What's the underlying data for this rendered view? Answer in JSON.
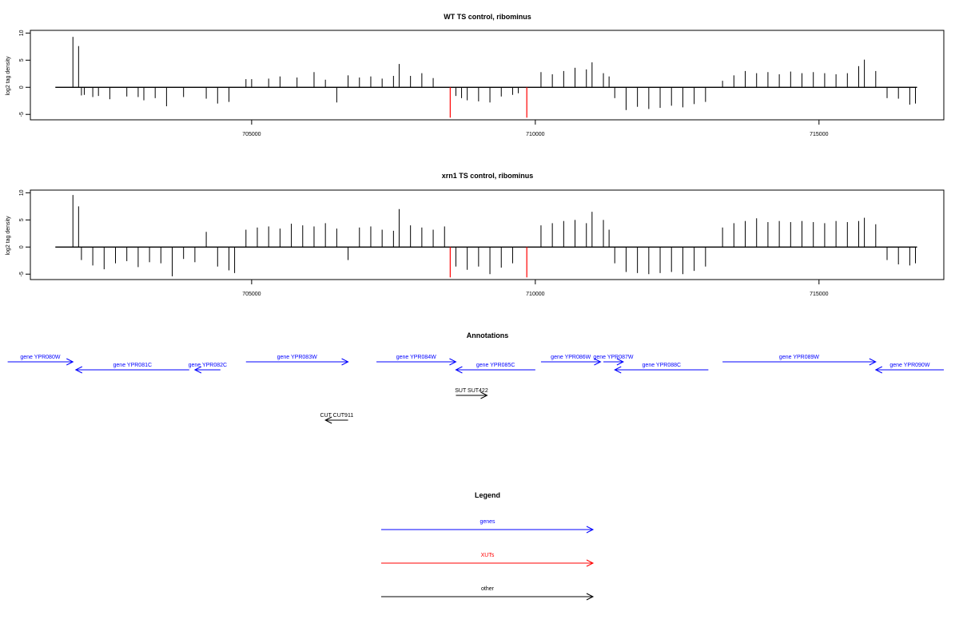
{
  "chart_data": [
    {
      "type": "bar",
      "title": "WT TS control, ribominus",
      "ylabel": "log2 tag density",
      "xlabel": "",
      "xlim": [
        701100,
        717200
      ],
      "ylim": [
        -6,
        10.5
      ],
      "x_ticks": [
        705000,
        710000,
        715000
      ],
      "y_ticks": [
        10,
        5,
        0,
        -5
      ],
      "grid": false,
      "series": [
        {
          "kind": "bars",
          "color": "#000000",
          "points": [
            [
              701850,
              9.3
            ],
            [
              701950,
              7.6
            ],
            [
              702000,
              -1.5
            ],
            [
              702050,
              -1.4
            ],
            [
              702200,
              -1.8
            ],
            [
              702300,
              -1.6
            ],
            [
              702500,
              -2.2
            ],
            [
              702800,
              -1.7
            ],
            [
              703000,
              -1.8
            ],
            [
              703100,
              -2.4
            ],
            [
              703300,
              -2.0
            ],
            [
              703500,
              -3.5
            ],
            [
              703800,
              -1.8
            ],
            [
              704200,
              -2.1
            ],
            [
              704400,
              -3.0
            ],
            [
              704600,
              -2.7
            ],
            [
              704900,
              1.5
            ],
            [
              705000,
              1.5
            ],
            [
              705300,
              1.6
            ],
            [
              705500,
              2.0
            ],
            [
              705800,
              1.8
            ],
            [
              706100,
              2.8
            ],
            [
              706300,
              1.4
            ],
            [
              706500,
              -2.8
            ],
            [
              706700,
              2.2
            ],
            [
              706900,
              1.8
            ],
            [
              707100,
              2.0
            ],
            [
              707300,
              1.6
            ],
            [
              707500,
              2.1
            ],
            [
              707600,
              4.3
            ],
            [
              707800,
              2.1
            ],
            [
              708000,
              2.6
            ],
            [
              708200,
              1.7
            ],
            [
              708600,
              -1.6
            ],
            [
              708700,
              -2.0
            ],
            [
              708800,
              -2.4
            ],
            [
              709000,
              -2.6
            ],
            [
              709200,
              -2.8
            ],
            [
              709400,
              -1.7
            ],
            [
              709600,
              -1.4
            ],
            [
              709700,
              -1.1
            ],
            [
              710100,
              2.8
            ],
            [
              710300,
              2.4
            ],
            [
              710500,
              3.0
            ],
            [
              710700,
              3.6
            ],
            [
              710900,
              3.3
            ],
            [
              711000,
              4.6
            ],
            [
              711200,
              2.6
            ],
            [
              711300,
              2.0
            ],
            [
              711400,
              -2.0
            ],
            [
              711600,
              -4.2
            ],
            [
              711800,
              -3.6
            ],
            [
              712000,
              -4.0
            ],
            [
              712200,
              -3.8
            ],
            [
              712400,
              -3.4
            ],
            [
              712600,
              -3.7
            ],
            [
              712800,
              -3.1
            ],
            [
              713000,
              -2.7
            ],
            [
              713300,
              1.2
            ],
            [
              713500,
              2.2
            ],
            [
              713700,
              3.0
            ],
            [
              713900,
              2.6
            ],
            [
              714100,
              2.8
            ],
            [
              714300,
              2.4
            ],
            [
              714500,
              2.9
            ],
            [
              714700,
              2.6
            ],
            [
              714900,
              2.8
            ],
            [
              715100,
              2.6
            ],
            [
              715300,
              2.4
            ],
            [
              715500,
              2.6
            ],
            [
              715700,
              3.9
            ],
            [
              715800,
              5.1
            ],
            [
              716000,
              3.0
            ],
            [
              716200,
              -2.0
            ],
            [
              716400,
              -2.1
            ],
            [
              716600,
              -3.2
            ],
            [
              716700,
              -3.0
            ]
          ]
        },
        {
          "kind": "bars",
          "color": "#ff0000",
          "points": [
            [
              708500,
              -5.6
            ],
            [
              709850,
              -5.6
            ]
          ]
        }
      ]
    },
    {
      "type": "bar",
      "title": "xrn1 TS control, ribominus",
      "ylabel": "log2 tag density",
      "xlabel": "",
      "xlim": [
        701100,
        717200
      ],
      "ylim": [
        -6,
        10.5
      ],
      "x_ticks": [
        705000,
        710000,
        715000
      ],
      "y_ticks": [
        10,
        5,
        0,
        -5
      ],
      "grid": false,
      "series": [
        {
          "kind": "bars",
          "color": "#000000",
          "points": [
            [
              701850,
              9.6
            ],
            [
              701950,
              7.5
            ],
            [
              702000,
              -2.4
            ],
            [
              702200,
              -3.4
            ],
            [
              702400,
              -4.1
            ],
            [
              702600,
              -3.0
            ],
            [
              702800,
              -2.6
            ],
            [
              703000,
              -3.7
            ],
            [
              703200,
              -2.8
            ],
            [
              703400,
              -3.0
            ],
            [
              703600,
              -5.4
            ],
            [
              703800,
              -2.2
            ],
            [
              704000,
              -2.8
            ],
            [
              704200,
              2.8
            ],
            [
              704400,
              -3.6
            ],
            [
              704600,
              -4.3
            ],
            [
              704700,
              -4.8
            ],
            [
              704900,
              3.2
            ],
            [
              705100,
              3.6
            ],
            [
              705300,
              3.8
            ],
            [
              705500,
              3.4
            ],
            [
              705700,
              4.3
            ],
            [
              705900,
              4.0
            ],
            [
              706100,
              3.8
            ],
            [
              706300,
              4.4
            ],
            [
              706500,
              3.4
            ],
            [
              706700,
              -2.4
            ],
            [
              706900,
              3.6
            ],
            [
              707100,
              3.8
            ],
            [
              707300,
              3.2
            ],
            [
              707500,
              3.0
            ],
            [
              707600,
              7.0
            ],
            [
              707800,
              4.0
            ],
            [
              708000,
              3.6
            ],
            [
              708200,
              3.2
            ],
            [
              708400,
              3.8
            ],
            [
              708600,
              -3.6
            ],
            [
              708800,
              -4.2
            ],
            [
              709000,
              -3.6
            ],
            [
              709200,
              -5.0
            ],
            [
              709400,
              -3.8
            ],
            [
              709600,
              -3.0
            ],
            [
              710100,
              4.0
            ],
            [
              710300,
              4.4
            ],
            [
              710500,
              4.8
            ],
            [
              710700,
              5.0
            ],
            [
              710900,
              4.4
            ],
            [
              711000,
              6.5
            ],
            [
              711200,
              5.0
            ],
            [
              711300,
              3.2
            ],
            [
              711400,
              -3.0
            ],
            [
              711600,
              -4.6
            ],
            [
              711800,
              -4.8
            ],
            [
              712000,
              -5.0
            ],
            [
              712200,
              -4.8
            ],
            [
              712400,
              -4.6
            ],
            [
              712600,
              -5.0
            ],
            [
              712800,
              -4.4
            ],
            [
              713000,
              -3.6
            ],
            [
              713300,
              3.6
            ],
            [
              713500,
              4.4
            ],
            [
              713700,
              4.8
            ],
            [
              713900,
              5.3
            ],
            [
              714100,
              4.6
            ],
            [
              714300,
              4.8
            ],
            [
              714500,
              4.6
            ],
            [
              714700,
              4.8
            ],
            [
              714900,
              4.6
            ],
            [
              715100,
              4.4
            ],
            [
              715300,
              4.8
            ],
            [
              715500,
              4.6
            ],
            [
              715700,
              4.8
            ],
            [
              715800,
              5.4
            ],
            [
              716000,
              4.2
            ],
            [
              716200,
              -2.4
            ],
            [
              716400,
              -3.2
            ],
            [
              716600,
              -3.4
            ],
            [
              716700,
              -3.0
            ]
          ]
        },
        {
          "kind": "bars",
          "color": "#ff0000",
          "points": [
            [
              708500,
              -5.6
            ],
            [
              709850,
              -5.6
            ]
          ]
        }
      ]
    }
  ],
  "annotations": {
    "title": "Annotations",
    "genes": [
      {
        "label": "gene YPR080W",
        "start": 700700,
        "end": 701850,
        "strand": "+"
      },
      {
        "label": "gene YPR081C",
        "start": 701900,
        "end": 703900,
        "strand": "-"
      },
      {
        "label": "gene YPR082C",
        "start": 704000,
        "end": 704450,
        "strand": "-"
      },
      {
        "label": "gene YPR083W",
        "start": 704900,
        "end": 706700,
        "strand": "+"
      },
      {
        "label": "gene YPR084W",
        "start": 707200,
        "end": 708600,
        "strand": "+"
      },
      {
        "label": "gene YPR085C",
        "start": 708600,
        "end": 710000,
        "strand": "-"
      },
      {
        "label": "gene YPR086W",
        "start": 710100,
        "end": 711150,
        "strand": "+"
      },
      {
        "label": "gene YPR087W",
        "start": 711200,
        "end": 711550,
        "strand": "+"
      },
      {
        "label": "gene YPR088C",
        "start": 711400,
        "end": 713050,
        "strand": "-"
      },
      {
        "label": "gene YPR089W",
        "start": 713300,
        "end": 716000,
        "strand": "+"
      },
      {
        "label": "gene YPR090W",
        "start": 716000,
        "end": 717200,
        "strand": "-"
      }
    ],
    "other": [
      {
        "label": "SUT SUT422",
        "start": 708600,
        "end": 709150,
        "strand": "+"
      },
      {
        "label": "CUT CUT911",
        "start": 706300,
        "end": 706700,
        "strand": "-"
      }
    ]
  },
  "legend": {
    "title": "Legend",
    "items": [
      {
        "label": "genes",
        "color": "#0000ff"
      },
      {
        "label": "XUTs",
        "color": "#ff0000"
      },
      {
        "label": "other",
        "color": "#000000"
      }
    ]
  }
}
